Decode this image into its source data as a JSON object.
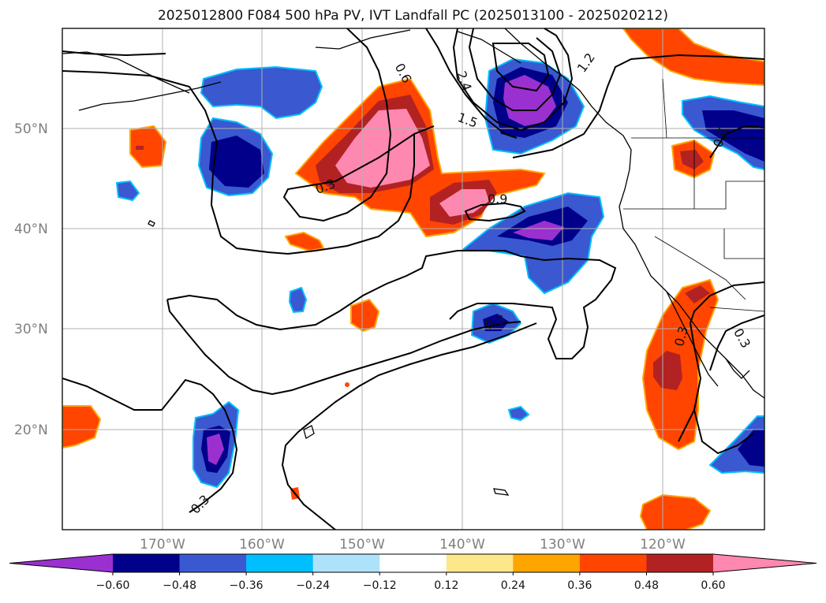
{
  "title": "2025012800 F084 500 hPa PV, IVT Landfall PC (2025013100 - 2025020212)",
  "map": {
    "lat_labels": [
      "50°N",
      "40°N",
      "30°N",
      "20°N"
    ],
    "lon_labels": [
      "170°W",
      "160°W",
      "150°W",
      "140°W",
      "130°W",
      "120°W"
    ],
    "contour_labels": [
      "0.6",
      "2.4",
      "1.5",
      "1.2",
      "0.3",
      "0.9",
      "0.6",
      "0.3",
      "0.3",
      "0.3",
      "0.3"
    ]
  },
  "colorbar": {
    "ticks": [
      "−0.60",
      "−0.48",
      "−0.36",
      "−0.24",
      "−0.12",
      "0.12",
      "0.24",
      "0.36",
      "0.48",
      "0.60"
    ],
    "colors": [
      "#9b30d0",
      "#00008b",
      "#3a58d0",
      "#00bfff",
      "#aee2fa",
      "#ffffff",
      "#fce88a",
      "#ffa500",
      "#ff4500",
      "#b22222",
      "#ff88b0"
    ]
  },
  "palette": {
    "purple": "#9b30d0",
    "navy": "#00008b",
    "royal": "#3a58d0",
    "sky": "#00bfff",
    "lightblue": "#aee2fa",
    "yellow": "#fce88a",
    "orange": "#ffa500",
    "orangered": "#ff4500",
    "firebrick": "#b22222",
    "pink": "#ff88b0"
  }
}
